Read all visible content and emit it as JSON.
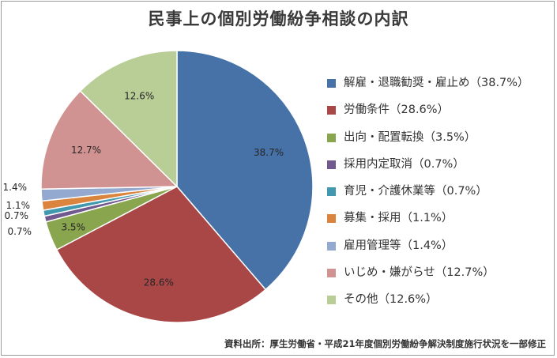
{
  "chart_data": {
    "type": "pie",
    "title": "民事上の個別労働紛争相談の内訳",
    "start_angle_deg": 0,
    "direction": "clockwise",
    "legend_position": "right",
    "slices": [
      {
        "name": "解雇・退職勧奨・雇止め",
        "value": 38.7,
        "label": "38.7%",
        "legend": "解雇・退職勧奨・雇止め（38.7%）",
        "color": "#4672a8",
        "label_outside": false
      },
      {
        "name": "労働条件",
        "value": 28.6,
        "label": "28.6%",
        "legend": "労働条件（28.6%）",
        "color": "#a94646",
        "label_outside": false
      },
      {
        "name": "出向・配置転換",
        "value": 3.5,
        "label": "3.5%",
        "legend": "出向・配置転換（3.5%）",
        "color": "#89a54e",
        "label_outside": false
      },
      {
        "name": "採用内定取消",
        "value": 0.7,
        "label": "0.7%",
        "legend": "採用内定取消（0.7%）",
        "color": "#71588f",
        "label_outside": true
      },
      {
        "name": "育児・介護休業等",
        "value": 0.7,
        "label": "0.7%",
        "legend": "育児・介護休業等（0.7%）",
        "color": "#4198af",
        "label_outside": true
      },
      {
        "name": "募集・採用",
        "value": 1.1,
        "label": "1.1%",
        "legend": "募集・採用（1.1%）",
        "color": "#db843d",
        "label_outside": true
      },
      {
        "name": "雇用管理等",
        "value": 1.4,
        "label": "1.4%",
        "legend": "雇用管理等（1.4%）",
        "color": "#93a9cf",
        "label_outside": true
      },
      {
        "name": "いじめ・嫌がらせ",
        "value": 12.7,
        "label": "12.7%",
        "legend": "いじめ・嫌がらせ（12.7%）",
        "color": "#d19392",
        "label_outside": false
      },
      {
        "name": "その他",
        "value": 12.6,
        "label": "12.6%",
        "legend": "その他（12.6%）",
        "color": "#b9cd96",
        "label_outside": false
      }
    ]
  },
  "source": "資料出所：厚生労働省・平成21年度個別労働紛争解決制度施行状況を一部修正"
}
